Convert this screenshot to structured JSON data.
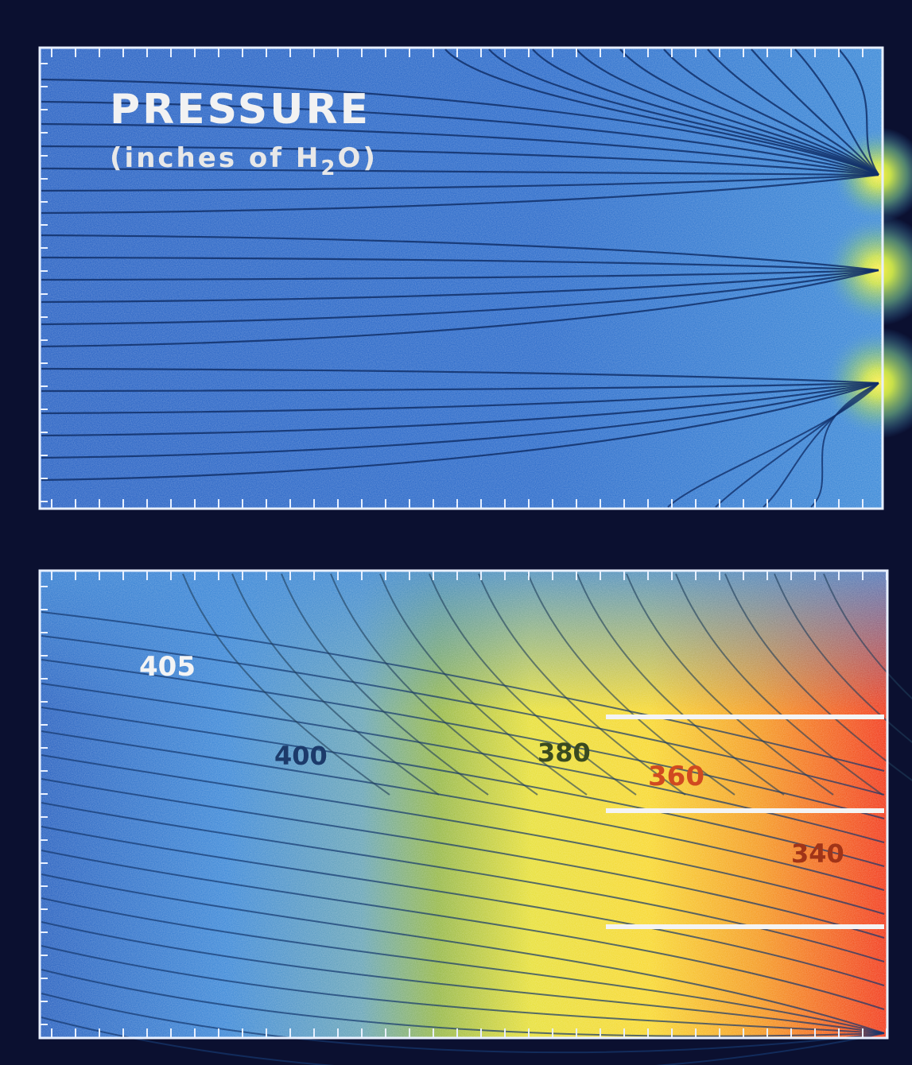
{
  "top_panel": {
    "title": "PRESSURE",
    "subtitle": {
      "before": "(inches of H",
      "sub": "2",
      "after": "O)"
    }
  },
  "bottom_panel": {
    "contour_labels": [
      "405",
      "400",
      "380",
      "360",
      "340"
    ]
  }
}
